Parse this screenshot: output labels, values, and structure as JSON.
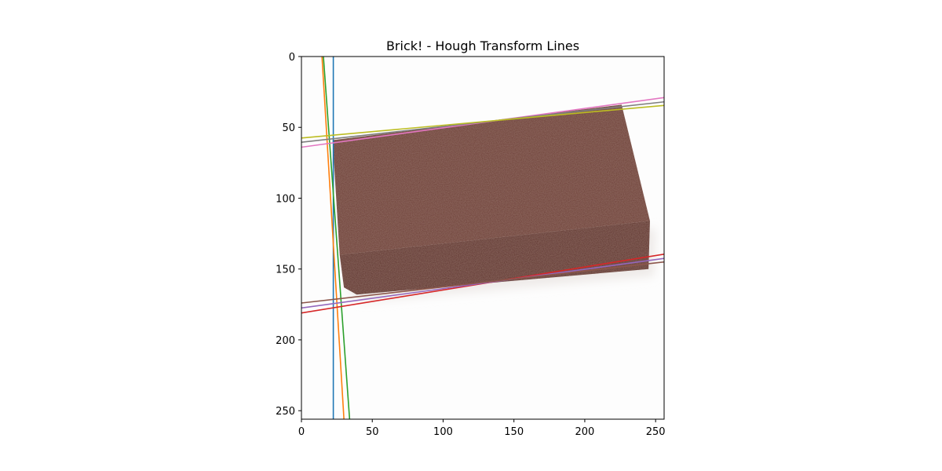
{
  "chart_data": {
    "type": "image",
    "title": "Brick! - Hough Transform Lines",
    "xlabel": "",
    "ylabel": "",
    "xlim": [
      0,
      256
    ],
    "ylim": [
      256,
      0
    ],
    "xticks": [
      0,
      50,
      100,
      150,
      200,
      250
    ],
    "yticks": [
      0,
      50,
      100,
      150,
      200,
      250
    ],
    "grid": false,
    "brick": {
      "color": "#6a3a30",
      "shadow_color": "#eeeae8",
      "top_face": [
        [
          22,
          59
        ],
        [
          226,
          34
        ],
        [
          246,
          116
        ],
        [
          27,
          140
        ]
      ],
      "front_face": [
        [
          27,
          140
        ],
        [
          246,
          116
        ],
        [
          245,
          150
        ],
        [
          39,
          168
        ],
        [
          30,
          163
        ]
      ]
    },
    "lines": [
      {
        "color": "#1f77b4",
        "p1": [
          22.5,
          0
        ],
        "p2": [
          22.5,
          256
        ]
      },
      {
        "color": "#ff7f0e",
        "p1": [
          14.5,
          0
        ],
        "p2": [
          30,
          256
        ]
      },
      {
        "color": "#2ca02c",
        "p1": [
          15.5,
          0
        ],
        "p2": [
          34,
          256
        ]
      },
      {
        "color": "#d62728",
        "p1": [
          0,
          181
        ],
        "p2": [
          256,
          139.5
        ]
      },
      {
        "color": "#9467bd",
        "p1": [
          0,
          177.5
        ],
        "p2": [
          256,
          142.5
        ]
      },
      {
        "color": "#8c564b",
        "p1": [
          0,
          174
        ],
        "p2": [
          256,
          145
        ]
      },
      {
        "color": "#e377c2",
        "p1": [
          0,
          64
        ],
        "p2": [
          256,
          29
        ]
      },
      {
        "color": "#7f7f7f",
        "p1": [
          0,
          60.5
        ],
        "p2": [
          256,
          32
        ]
      },
      {
        "color": "#bcbd22",
        "p1": [
          0,
          57.5
        ],
        "p2": [
          256,
          34.5
        ]
      }
    ]
  }
}
